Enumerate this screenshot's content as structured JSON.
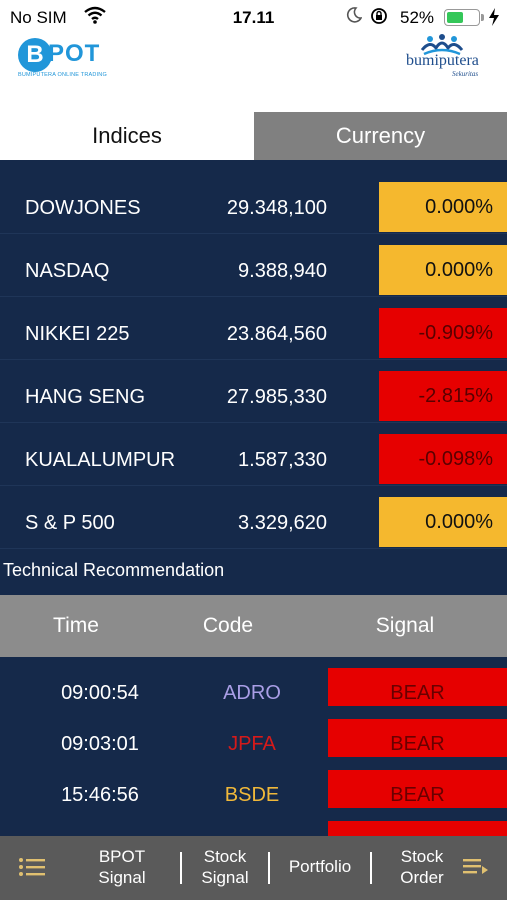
{
  "status_bar": {
    "carrier": "No SIM",
    "time": "17.11",
    "battery_percent": "52%",
    "battery_level": 0.52,
    "icons": [
      "wifi-icon",
      "moon-icon",
      "rotation-lock-icon",
      "battery-icon",
      "charging-bolt-icon"
    ]
  },
  "header": {
    "left_logo": {
      "mark": "B",
      "text": "POT",
      "subtitle": "BUMIPUTERA ONLINE TRADING"
    },
    "right_logo": {
      "text": "bumiputera",
      "subtitle": "Sekuritas"
    }
  },
  "tabs": [
    {
      "label": "Indices",
      "active": true
    },
    {
      "label": "Currency",
      "active": false
    }
  ],
  "indices": [
    {
      "name": "DOWJONES",
      "value": "29.348,100",
      "change": "0.000%",
      "status": "flat"
    },
    {
      "name": "NASDAQ",
      "value": "9.388,940",
      "change": "0.000%",
      "status": "flat"
    },
    {
      "name": "NIKKEI 225",
      "value": "23.864,560",
      "change": "-0.909%",
      "status": "down"
    },
    {
      "name": "HANG SENG",
      "value": "27.985,330",
      "change": "-2.815%",
      "status": "down"
    },
    {
      "name": "KUALALUMPUR",
      "value": "1.587,330",
      "change": "-0.098%",
      "status": "down"
    },
    {
      "name": "S & P 500",
      "value": "3.329,620",
      "change": "0.000%",
      "status": "flat"
    }
  ],
  "colors": {
    "panel_bg": "#15294a",
    "flat": "#f5b82e",
    "down": "#e60000",
    "tab_inactive": "#808080",
    "nav_bg": "#5a5a5a",
    "brand_blue": "#2196d9"
  },
  "technical": {
    "title": "Technical Recommendation",
    "columns": [
      "Time",
      "Code",
      "Signal"
    ],
    "rows": [
      {
        "time": "09:00:54",
        "code": "ADRO",
        "code_color": "#a99ee6",
        "signal": "BEAR"
      },
      {
        "time": "09:03:01",
        "code": "JPFA",
        "code_color": "#d61a1a",
        "signal": "BEAR"
      },
      {
        "time": "15:46:56",
        "code": "BSDE",
        "code_color": "#f0b83a",
        "signal": "BEAR"
      },
      {
        "time": "",
        "code": "",
        "code_color": "#ffffff",
        "signal": ""
      }
    ]
  },
  "bottom_nav": {
    "left_icon": "list-icon",
    "items": [
      {
        "label_line1": "BPOT",
        "label_line2": "Signal"
      },
      {
        "label_line1": "Stock",
        "label_line2": "Signal"
      },
      {
        "label_line1": "Portfolio",
        "label_line2": ""
      },
      {
        "label_line1": "Stock",
        "label_line2": "Order"
      }
    ],
    "right_icon": "list-add-icon"
  }
}
